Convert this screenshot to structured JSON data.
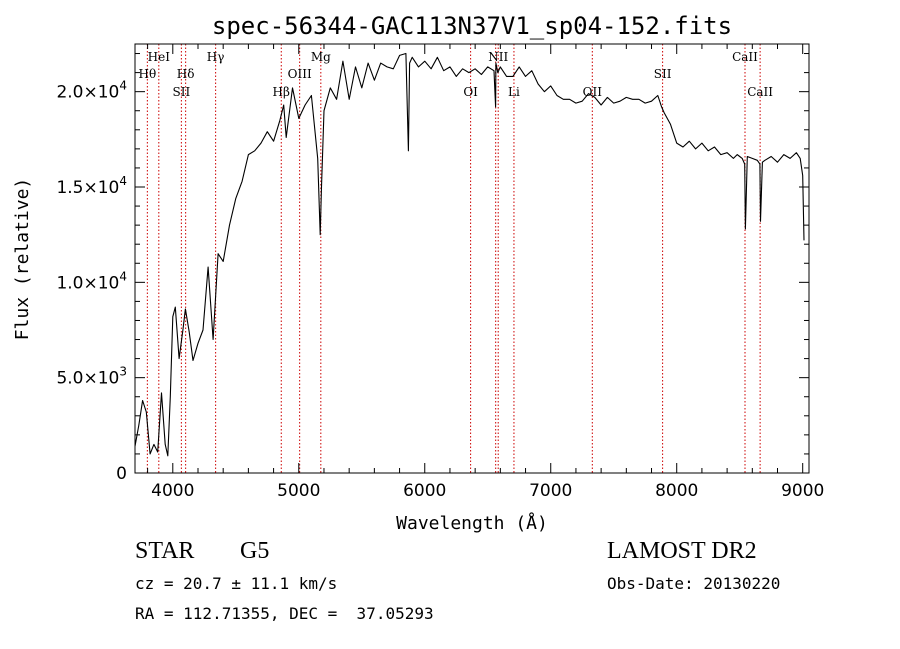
{
  "chart_data": {
    "type": "line",
    "title": "spec-56344-GAC113N37V1_sp04-152.fits",
    "xlabel": "Wavelength (Å)",
    "ylabel": "Flux (relative)",
    "xlim": [
      3700,
      9050
    ],
    "ylim": [
      0,
      22500
    ],
    "x_ticks": [
      {
        "value": 4000,
        "label": "4000"
      },
      {
        "value": 5000,
        "label": "5000"
      },
      {
        "value": 6000,
        "label": "6000"
      },
      {
        "value": 7000,
        "label": "7000"
      },
      {
        "value": 8000,
        "label": "8000"
      },
      {
        "value": 9000,
        "label": "9000"
      }
    ],
    "y_ticks": [
      {
        "value": 0,
        "mant": "0",
        "exp": ""
      },
      {
        "value": 5000,
        "mant": "5.0×10",
        "exp": "3"
      },
      {
        "value": 10000,
        "mant": "1.0×10",
        "exp": "4"
      },
      {
        "value": 15000,
        "mant": "1.5×10",
        "exp": "4"
      },
      {
        "value": 20000,
        "mant": "2.0×10",
        "exp": "4"
      }
    ],
    "series": [
      {
        "name": "spectrum",
        "color": "#000000",
        "x": [
          3700,
          3730,
          3760,
          3790,
          3820,
          3850,
          3880,
          3910,
          3940,
          3960,
          3980,
          4000,
          4020,
          4050,
          4080,
          4100,
          4130,
          4160,
          4200,
          4240,
          4280,
          4320,
          4360,
          4400,
          4450,
          4500,
          4550,
          4600,
          4650,
          4700,
          4750,
          4800,
          4850,
          4880,
          4900,
          4950,
          5000,
          5050,
          5100,
          5150,
          5170,
          5180,
          5200,
          5250,
          5300,
          5350,
          5400,
          5450,
          5500,
          5550,
          5600,
          5650,
          5700,
          5750,
          5800,
          5850,
          5870,
          5880,
          5900,
          5950,
          6000,
          6050,
          6100,
          6150,
          6200,
          6250,
          6300,
          6350,
          6400,
          6450,
          6500,
          6550,
          6562,
          6565,
          6580,
          6600,
          6650,
          6700,
          6750,
          6800,
          6850,
          6900,
          6950,
          7000,
          7050,
          7100,
          7150,
          7200,
          7250,
          7300,
          7350,
          7400,
          7450,
          7500,
          7550,
          7600,
          7650,
          7700,
          7750,
          7800,
          7850,
          7880,
          7900,
          7950,
          8000,
          8050,
          8100,
          8150,
          8200,
          8250,
          8300,
          8350,
          8400,
          8450,
          8480,
          8500,
          8520,
          8540,
          8545,
          8560,
          8600,
          8640,
          8660,
          8665,
          8680,
          8700,
          8750,
          8800,
          8850,
          8900,
          8950,
          8980,
          9000,
          9010
        ],
        "y": [
          1400,
          2500,
          3800,
          3200,
          1000,
          1500,
          1100,
          4200,
          1500,
          900,
          4000,
          8200,
          8700,
          6000,
          7500,
          8600,
          7400,
          5900,
          6800,
          7500,
          10800,
          7000,
          11500,
          11100,
          13000,
          14400,
          15300,
          16700,
          16900,
          17300,
          17900,
          17400,
          18500,
          19300,
          17600,
          20200,
          18600,
          19300,
          19800,
          16500,
          12500,
          15000,
          19000,
          20200,
          19600,
          21600,
          19600,
          21300,
          20200,
          21500,
          20600,
          21500,
          21300,
          21200,
          21900,
          22000,
          16900,
          21500,
          21800,
          21300,
          21600,
          21200,
          21800,
          21100,
          21300,
          20800,
          21200,
          21000,
          21200,
          20900,
          21300,
          21100,
          19200,
          21500,
          21000,
          21300,
          20800,
          20800,
          21300,
          20800,
          21100,
          20400,
          20000,
          20300,
          19800,
          19600,
          19600,
          19400,
          19500,
          19900,
          19700,
          19300,
          19700,
          19400,
          19500,
          19700,
          19600,
          19600,
          19400,
          19500,
          19800,
          19200,
          18900,
          18300,
          17300,
          17100,
          17400,
          17000,
          17300,
          16900,
          17100,
          16700,
          16800,
          16500,
          16700,
          16600,
          16500,
          16200,
          12800,
          16600,
          16500,
          16400,
          16200,
          13200,
          16300,
          16400,
          16600,
          16300,
          16700,
          16500,
          16800,
          16500,
          15600,
          12200
        ]
      }
    ],
    "line_labels": [
      {
        "text": "HeI",
        "x": 3889,
        "row": 1
      },
      {
        "text": "Hθ",
        "x": 3798,
        "row": 2
      },
      {
        "text": "Hδ",
        "x": 4102,
        "row": 2
      },
      {
        "text": "SII",
        "x": 4068,
        "row": 3
      },
      {
        "text": "Hγ",
        "x": 4340,
        "row": 1
      },
      {
        "text": "Mg",
        "x": 5175,
        "row": 1
      },
      {
        "text": "OIII",
        "x": 5007,
        "row": 2
      },
      {
        "text": "Hβ",
        "x": 4861,
        "row": 3
      },
      {
        "text": "NII",
        "x": 6583,
        "row": 1
      },
      {
        "text": "OI",
        "x": 6364,
        "row": 3
      },
      {
        "text": "Li",
        "x": 6708,
        "row": 3
      },
      {
        "text": "OII",
        "x": 7330,
        "row": 3
      },
      {
        "text": "SII",
        "x": 7888,
        "row": 2
      },
      {
        "text": "CaII",
        "x": 8542,
        "row": 1
      },
      {
        "text": "CaII",
        "x": 8662,
        "row": 3
      }
    ],
    "marker_lines": [
      3798,
      3889,
      4068,
      4102,
      4340,
      4861,
      5007,
      5175,
      6364,
      6563,
      6583,
      6708,
      7330,
      7888,
      8542,
      8662
    ],
    "marker_color": "#cc0000",
    "grid": false
  },
  "info": {
    "object_type": "STAR",
    "subclass": "G5",
    "survey": "LAMOST DR2",
    "cz": "cz = 20.7 ± 11.1 km/s",
    "obs_date": "Obs-Date: 20130220",
    "coords": "RA = 112.71355, DEC =  37.05293"
  }
}
